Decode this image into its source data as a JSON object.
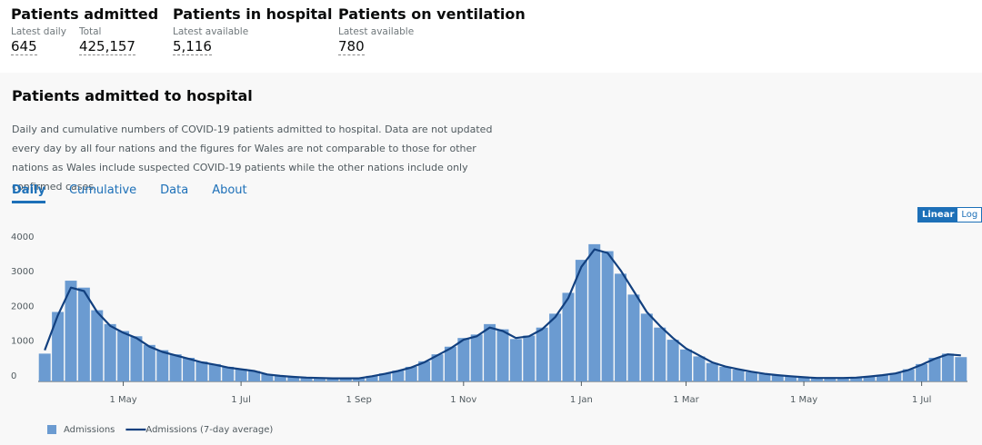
{
  "headlines": [
    {
      "title": "Patients admitted",
      "stats": [
        {
          "label": "Latest daily",
          "value": "645"
        },
        {
          "label": "Total",
          "value": "425,157"
        }
      ]
    },
    {
      "title": "Patients in hospital",
      "stats": [
        {
          "label": "Latest available",
          "value": "5,116"
        }
      ]
    },
    {
      "title": "Patients on ventilation",
      "stats": [
        {
          "label": "Latest available",
          "value": "780"
        }
      ]
    }
  ],
  "card": {
    "title": "Patients admitted to hospital",
    "description": "Daily and cumulative numbers of COVID-19 patients admitted to hospital. Data are not updated every day by all four nations and the figures for Wales are not comparable to those for other nations as Wales include suspected COVID-19 patients while the other nations include only confirmed cases.",
    "tabs": [
      "Daily",
      "Cumulative",
      "Data",
      "About"
    ],
    "scale_options": [
      "Linear",
      "Log"
    ]
  },
  "chart_data": {
    "type": "bar",
    "log_scale": false,
    "categories": [
      null,
      null,
      null,
      null,
      null,
      null,
      "1 May",
      null,
      null,
      null,
      null,
      null,
      null,
      null,
      null,
      "1 Jul",
      null,
      null,
      null,
      null,
      null,
      null,
      null,
      null,
      "1 Sep",
      null,
      null,
      null,
      null,
      null,
      null,
      null,
      "1 Nov",
      null,
      null,
      null,
      null,
      null,
      null,
      null,
      null,
      "1 Jan",
      null,
      null,
      null,
      null,
      null,
      null,
      null,
      "1 Mar",
      null,
      null,
      null,
      null,
      null,
      null,
      null,
      null,
      "1 May",
      null,
      null,
      null,
      null,
      null,
      null,
      null,
      null,
      "1 Jul",
      null,
      null,
      null
    ],
    "series": [
      {
        "name": "Admissions",
        "type": "bar",
        "color": "#6b9bd1",
        "values": [
          800,
          2000,
          2900,
          2700,
          2050,
          1650,
          1450,
          1300,
          1050,
          900,
          780,
          680,
          570,
          500,
          420,
          360,
          300,
          210,
          170,
          140,
          115,
          100,
          95,
          90,
          95,
          160,
          230,
          310,
          420,
          580,
          780,
          1000,
          1250,
          1350,
          1650,
          1500,
          1220,
          1320,
          1550,
          1950,
          2550,
          3500,
          3950,
          3750,
          3100,
          2500,
          1950,
          1550,
          1200,
          920,
          720,
          530,
          420,
          340,
          270,
          215,
          175,
          145,
          120,
          100,
          95,
          100,
          115,
          145,
          190,
          240,
          350,
          500,
          680,
          800,
          700
        ]
      },
      {
        "name": "Admissions (7-day average)",
        "type": "line",
        "color": "#12407f",
        "values": [
          900,
          1900,
          2700,
          2600,
          2000,
          1600,
          1400,
          1250,
          1000,
          850,
          750,
          650,
          550,
          480,
          400,
          350,
          300,
          200,
          160,
          130,
          110,
          100,
          90,
          90,
          90,
          150,
          220,
          300,
          400,
          550,
          750,
          950,
          1200,
          1300,
          1550,
          1450,
          1250,
          1300,
          1500,
          1850,
          2400,
          3300,
          3800,
          3700,
          3200,
          2600,
          2000,
          1600,
          1250,
          950,
          750,
          550,
          430,
          350,
          280,
          220,
          180,
          150,
          120,
          100,
          100,
          100,
          110,
          140,
          180,
          230,
          330,
          480,
          650,
          780,
          750
        ]
      }
    ],
    "ylim": [
      0,
      4300
    ],
    "yticks": [
      0,
      1000,
      2000,
      3000,
      4000
    ]
  }
}
